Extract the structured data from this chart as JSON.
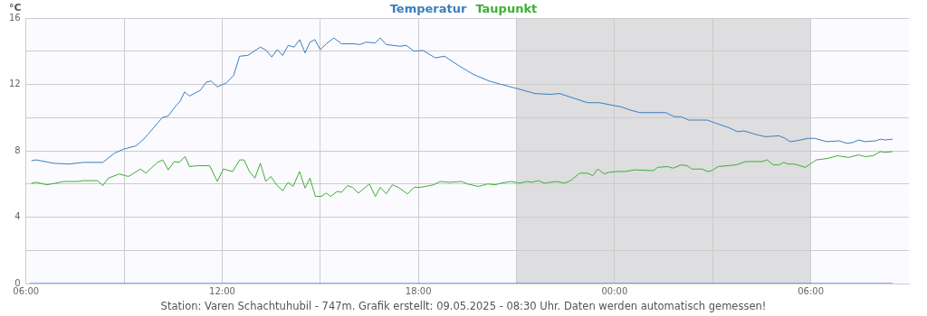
{
  "chart_data": {
    "type": "line",
    "ylabel": "°C",
    "legend": "top",
    "grid": true,
    "marker": "none",
    "line_style": "solid",
    "xlim": [
      "2025-05-08T06:00",
      "2025-05-09T09:00"
    ],
    "ylim": [
      0,
      16
    ],
    "xticks": [
      {
        "value": "2025-05-08T06:00",
        "label": "06:00"
      },
      {
        "value": "2025-05-08T09:00",
        "label": null
      },
      {
        "value": "2025-05-08T12:00",
        "label": "12:00"
      },
      {
        "value": "2025-05-08T15:00",
        "label": null
      },
      {
        "value": "2025-05-08T18:00",
        "label": "18:00"
      },
      {
        "value": "2025-05-08T21:00",
        "label": null
      },
      {
        "value": "2025-05-09T00:00",
        "label": "00:00"
      },
      {
        "value": "2025-05-09T03:00",
        "label": null
      },
      {
        "value": "2025-05-09T06:00",
        "label": "06:00"
      }
    ],
    "yticks": [
      0,
      {
        "value": 2,
        "label": null
      },
      4,
      {
        "value": 6,
        "label": null
      },
      8,
      {
        "value": 10,
        "label": null
      },
      12,
      {
        "value": 14,
        "label": null
      },
      16
    ],
    "bands": [
      {
        "axis": "x",
        "from": "2025-05-08T21:00",
        "to": "2025-05-09T06:00",
        "color": "#dedde0"
      }
    ],
    "annotations": [
      "Station: Varen Schachtuhubil - 747m. Grafik erstellt: 09.05.2025 - 08:30 Uhr. Daten werden automatisch gemessen!"
    ],
    "series": [
      {
        "name": "Temperatur",
        "color": "#3a7ebf",
        "x": [
          "2025-05-08T06:10",
          "2025-05-08T06:19",
          "2025-05-08T06:50",
          "2025-05-08T07:18",
          "2025-05-08T07:46",
          "2025-05-08T08:21",
          "2025-05-08T08:42",
          "2025-05-08T08:59",
          "2025-05-08T09:22",
          "2025-05-08T09:36",
          "2025-05-08T09:44",
          "2025-05-08T10:10",
          "2025-05-08T10:21",
          "2025-05-08T10:35",
          "2025-05-08T10:43",
          "2025-05-08T10:51",
          "2025-05-08T11:00",
          "2025-05-08T11:20",
          "2025-05-08T11:31",
          "2025-05-08T11:40",
          "2025-05-08T11:51",
          "2025-05-08T12:08",
          "2025-05-08T12:21",
          "2025-05-08T12:32",
          "2025-05-08T12:47",
          "2025-05-08T13:10",
          "2025-05-08T13:21",
          "2025-05-08T13:31",
          "2025-05-08T13:41",
          "2025-05-08T13:51",
          "2025-05-08T14:01",
          "2025-05-08T14:12",
          "2025-05-08T14:22",
          "2025-05-08T14:32",
          "2025-05-08T14:41",
          "2025-05-08T14:50",
          "2025-05-08T15:00",
          "2025-05-08T15:11",
          "2025-05-08T15:25",
          "2025-05-08T15:39",
          "2025-05-08T16:02",
          "2025-05-08T16:13",
          "2025-05-08T16:24",
          "2025-05-08T16:41",
          "2025-05-08T16:50",
          "2025-05-08T17:01",
          "2025-05-08T17:26",
          "2025-05-08T17:38",
          "2025-05-08T17:52",
          "2025-05-08T18:08",
          "2025-05-08T18:31",
          "2025-05-08T18:48",
          "2025-05-08T19:13",
          "2025-05-08T19:41",
          "2025-05-08T20:10",
          "2025-05-08T20:32",
          "2025-05-08T21:01",
          "2025-05-08T21:34",
          "2025-05-08T22:02",
          "2025-05-08T22:19",
          "2025-05-08T22:47",
          "2025-05-08T23:10",
          "2025-05-08T23:32",
          "2025-05-08T23:55",
          "2025-05-09T00:12",
          "2025-05-09T00:29",
          "2025-05-09T00:46",
          "2025-05-09T01:34",
          "2025-05-09T01:50",
          "2025-05-09T02:02",
          "2025-05-09T02:16",
          "2025-05-09T02:50",
          "2025-05-09T03:07",
          "2025-05-09T03:29",
          "2025-05-09T03:46",
          "2025-05-09T03:57",
          "2025-05-09T04:23",
          "2025-05-09T04:37",
          "2025-05-09T05:02",
          "2025-05-09T05:13",
          "2025-05-09T05:22",
          "2025-05-09T05:33",
          "2025-05-09T05:55",
          "2025-05-09T06:07",
          "2025-05-09T06:29",
          "2025-05-09T06:52",
          "2025-05-09T07:06",
          "2025-05-09T07:17",
          "2025-05-09T07:28",
          "2025-05-09T07:40",
          "2025-05-09T07:59",
          "2025-05-09T08:08",
          "2025-05-09T08:16",
          "2025-05-09T08:30"
        ],
        "values": [
          7.4,
          7.45,
          7.25,
          7.2,
          7.3,
          7.3,
          7.85,
          8.1,
          8.3,
          8.7,
          9.0,
          10.0,
          10.1,
          10.7,
          11.0,
          11.55,
          11.3,
          11.65,
          12.15,
          12.2,
          11.85,
          12.1,
          12.55,
          13.7,
          13.75,
          14.25,
          14.05,
          13.65,
          14.1,
          13.75,
          14.35,
          14.25,
          14.7,
          13.9,
          14.55,
          14.7,
          14.1,
          14.45,
          14.8,
          14.45,
          14.45,
          14.4,
          14.55,
          14.5,
          14.8,
          14.4,
          14.3,
          14.35,
          14.0,
          14.05,
          13.6,
          13.7,
          13.15,
          12.6,
          12.2,
          12.0,
          11.75,
          11.45,
          11.4,
          11.45,
          11.15,
          10.9,
          10.9,
          10.75,
          10.65,
          10.45,
          10.3,
          10.3,
          10.05,
          10.05,
          9.85,
          9.85,
          9.65,
          9.4,
          9.15,
          9.2,
          8.95,
          8.85,
          8.9,
          8.75,
          8.55,
          8.6,
          8.75,
          8.75,
          8.55,
          8.6,
          8.45,
          8.5,
          8.65,
          8.55,
          8.6,
          8.7,
          8.65,
          8.7
        ]
      },
      {
        "name": "Taupunkt",
        "color": "#3cb034",
        "x": [
          "2025-05-08T06:10",
          "2025-05-08T06:19",
          "2025-05-08T06:38",
          "2025-05-08T06:55",
          "2025-05-08T07:09",
          "2025-05-08T07:35",
          "2025-05-08T07:46",
          "2025-05-08T08:11",
          "2025-05-08T08:21",
          "2025-05-08T08:31",
          "2025-05-08T08:51",
          "2025-05-08T09:08",
          "2025-05-08T09:30",
          "2025-05-08T09:40",
          "2025-05-08T10:01",
          "2025-05-08T10:11",
          "2025-05-08T10:21",
          "2025-05-08T10:32",
          "2025-05-08T10:41",
          "2025-05-08T10:52",
          "2025-05-08T11:00",
          "2025-05-08T11:14",
          "2025-05-08T11:37",
          "2025-05-08T11:51",
          "2025-05-08T12:02",
          "2025-05-08T12:19",
          "2025-05-08T12:32",
          "2025-05-08T12:40",
          "2025-05-08T12:50",
          "2025-05-08T13:00",
          "2025-05-08T13:10",
          "2025-05-08T13:20",
          "2025-05-08T13:29",
          "2025-05-08T13:41",
          "2025-05-08T13:51",
          "2025-05-08T14:01",
          "2025-05-08T14:10",
          "2025-05-08T14:22",
          "2025-05-08T14:32",
          "2025-05-08T14:41",
          "2025-05-08T14:51",
          "2025-05-08T15:02",
          "2025-05-08T15:11",
          "2025-05-08T15:19",
          "2025-05-08T15:31",
          "2025-05-08T15:39",
          "2025-05-08T15:50",
          "2025-05-08T15:59",
          "2025-05-08T16:10",
          "2025-05-08T16:30",
          "2025-05-08T16:41",
          "2025-05-08T16:50",
          "2025-05-08T17:01",
          "2025-05-08T17:12",
          "2025-05-08T17:23",
          "2025-05-08T17:40",
          "2025-05-08T17:52",
          "2025-05-08T18:05",
          "2025-05-08T18:28",
          "2025-05-08T18:40",
          "2025-05-08T18:56",
          "2025-05-08T19:19",
          "2025-05-08T19:30",
          "2025-05-08T19:50",
          "2025-05-08T20:07",
          "2025-05-08T20:21",
          "2025-05-08T20:32",
          "2025-05-08T20:49",
          "2025-05-08T21:06",
          "2025-05-08T21:20",
          "2025-05-08T21:28",
          "2025-05-08T21:40",
          "2025-05-08T21:51",
          "2025-05-08T22:14",
          "2025-05-08T22:28",
          "2025-05-08T22:39",
          "2025-05-08T22:56",
          "2025-05-08T23:10",
          "2025-05-08T23:20",
          "2025-05-08T23:29",
          "2025-05-08T23:41",
          "2025-05-08T23:49",
          "2025-05-09T00:04",
          "2025-05-09T00:20",
          "2025-05-09T00:37",
          "2025-05-09T01:11",
          "2025-05-09T01:19",
          "2025-05-09T01:37",
          "2025-05-09T01:47",
          "2025-05-09T02:02",
          "2025-05-09T02:13",
          "2025-05-09T02:22",
          "2025-05-09T02:41",
          "2025-05-09T02:50",
          "2025-05-09T02:58",
          "2025-05-09T03:10",
          "2025-05-09T03:43",
          "2025-05-09T04:00",
          "2025-05-09T04:31",
          "2025-05-09T04:40",
          "2025-05-09T04:51",
          "2025-05-09T05:02",
          "2025-05-09T05:10",
          "2025-05-09T05:19",
          "2025-05-09T05:30",
          "2025-05-09T05:50",
          "2025-05-09T06:10",
          "2025-05-09T06:23",
          "2025-05-09T06:32",
          "2025-05-09T06:49",
          "2025-05-09T07:09",
          "2025-05-09T07:28",
          "2025-05-09T07:40",
          "2025-05-09T07:54",
          "2025-05-09T08:08",
          "2025-05-09T08:16",
          "2025-05-09T08:30"
        ],
        "values": [
          6.05,
          6.1,
          5.95,
          6.05,
          6.15,
          6.15,
          6.2,
          6.2,
          5.9,
          6.35,
          6.6,
          6.45,
          6.9,
          6.65,
          7.3,
          7.45,
          6.85,
          7.35,
          7.3,
          7.65,
          7.05,
          7.1,
          7.1,
          6.15,
          6.9,
          6.75,
          7.45,
          7.45,
          6.75,
          6.35,
          7.25,
          6.15,
          6.45,
          5.9,
          5.6,
          6.1,
          5.85,
          6.75,
          5.75,
          6.35,
          5.25,
          5.25,
          5.45,
          5.25,
          5.55,
          5.5,
          5.9,
          5.8,
          5.45,
          6.0,
          5.25,
          5.8,
          5.4,
          5.95,
          5.8,
          5.4,
          5.8,
          5.8,
          5.95,
          6.15,
          6.1,
          6.15,
          6.0,
          5.85,
          6.0,
          5.95,
          6.05,
          6.15,
          6.05,
          6.15,
          6.1,
          6.2,
          6.05,
          6.15,
          6.05,
          6.2,
          6.65,
          6.65,
          6.5,
          6.9,
          6.6,
          6.7,
          6.75,
          6.75,
          6.85,
          6.8,
          7.0,
          7.05,
          6.95,
          7.15,
          7.1,
          6.9,
          6.9,
          6.75,
          6.8,
          7.05,
          7.15,
          7.35,
          7.35,
          7.45,
          7.15,
          7.15,
          7.3,
          7.2,
          7.2,
          7.0,
          7.45,
          7.5,
          7.55,
          7.7,
          7.6,
          7.75,
          7.65,
          7.7,
          7.95,
          7.9,
          7.95
        ]
      },
      {
        "color": "#3366cc",
        "x": [
          "2025-05-08T06:06",
          "2025-05-09T08:30"
        ],
        "values": [
          0,
          0
        ]
      }
    ]
  }
}
